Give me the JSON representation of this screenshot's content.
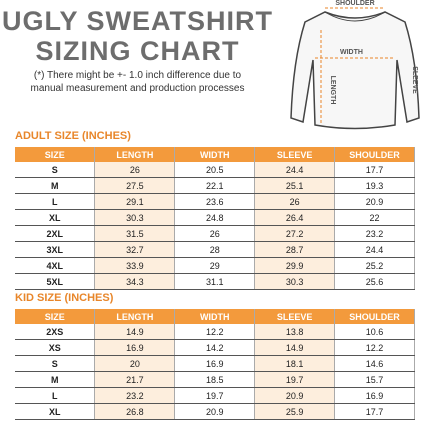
{
  "header": {
    "title_lines": [
      "UGLY SWEATSHIRT",
      "SIZING CHART"
    ],
    "note_lines": [
      "(*) There might be +- 1.0 inch difference due to",
      "manual measurement and production processes"
    ]
  },
  "diagram": {
    "labels": {
      "shoulder": "SHOULDER",
      "width": "WIDTH",
      "length": "LENGTH",
      "sleeve": "SLEEVE"
    }
  },
  "tables": [
    {
      "title": "ADULT SIZE (INCHES)",
      "columns": [
        "SIZE",
        "LENGTH",
        "WIDTH",
        "SLEEVE",
        "SHOULDER"
      ],
      "rows": [
        [
          "S",
          "26",
          "20.5",
          "24.4",
          "17.7"
        ],
        [
          "M",
          "27.5",
          "22.1",
          "25.1",
          "19.3"
        ],
        [
          "L",
          "29.1",
          "23.6",
          "26",
          "20.9"
        ],
        [
          "XL",
          "30.3",
          "24.8",
          "26.4",
          "22"
        ],
        [
          "2XL",
          "31.5",
          "26",
          "27.2",
          "23.2"
        ],
        [
          "3XL",
          "32.7",
          "28",
          "28.7",
          "24.4"
        ],
        [
          "4XL",
          "33.9",
          "29",
          "29.9",
          "25.2"
        ],
        [
          "5XL",
          "34.3",
          "31.1",
          "30.3",
          "25.6"
        ]
      ]
    },
    {
      "title": "KID SIZE (INCHES)",
      "columns": [
        "SIZE",
        "LENGTH",
        "WIDTH",
        "SLEEVE",
        "SHOULDER"
      ],
      "rows": [
        [
          "2XS",
          "14.9",
          "12.2",
          "13.8",
          "10.6"
        ],
        [
          "XS",
          "16.9",
          "14.2",
          "14.9",
          "12.2"
        ],
        [
          "S",
          "20",
          "16.9",
          "18.1",
          "14.6"
        ],
        [
          "M",
          "21.7",
          "18.5",
          "19.7",
          "15.7"
        ],
        [
          "L",
          "23.2",
          "19.7",
          "20.9",
          "16.9"
        ],
        [
          "XL",
          "26.8",
          "20.9",
          "25.9",
          "17.7"
        ]
      ]
    }
  ]
}
